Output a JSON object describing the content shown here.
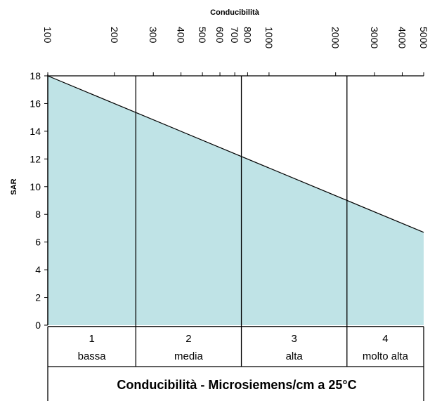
{
  "chart_data": {
    "type": "area",
    "title": "Conducibilità",
    "ylabel": "SAR",
    "xlabel": "Conducibilità  -  Microsiemens/cm  a  25°C",
    "x_scale": "log",
    "xlim": [
      100,
      5000
    ],
    "ylim": [
      0,
      18
    ],
    "x_ticks": [
      100,
      200,
      300,
      400,
      500,
      600,
      700,
      800,
      1000,
      2000,
      3000,
      4000,
      5000
    ],
    "x_tick_labels": [
      "100",
      "200",
      "300",
      "400",
      "500",
      "600",
      "700",
      "800",
      "1000",
      "2000",
      "3000",
      "4000",
      "5000"
    ],
    "y_ticks": [
      0,
      2,
      4,
      6,
      8,
      10,
      12,
      14,
      16,
      18
    ],
    "y_tick_labels": [
      "0",
      "2",
      "4",
      "6",
      "8",
      "10",
      "12",
      "14",
      "16",
      "18"
    ],
    "line": {
      "x": [
        100,
        5000
      ],
      "y": [
        18,
        6.7
      ]
    },
    "fill_color": "#bfe3e6",
    "line_color": "#000000",
    "class_boundaries": [
      250,
      750,
      2250
    ],
    "classes": [
      {
        "number": "1",
        "name": "bassa"
      },
      {
        "number": "2",
        "name": "media"
      },
      {
        "number": "3",
        "name": "alta"
      },
      {
        "number": "4",
        "name": "molto alta"
      }
    ]
  }
}
